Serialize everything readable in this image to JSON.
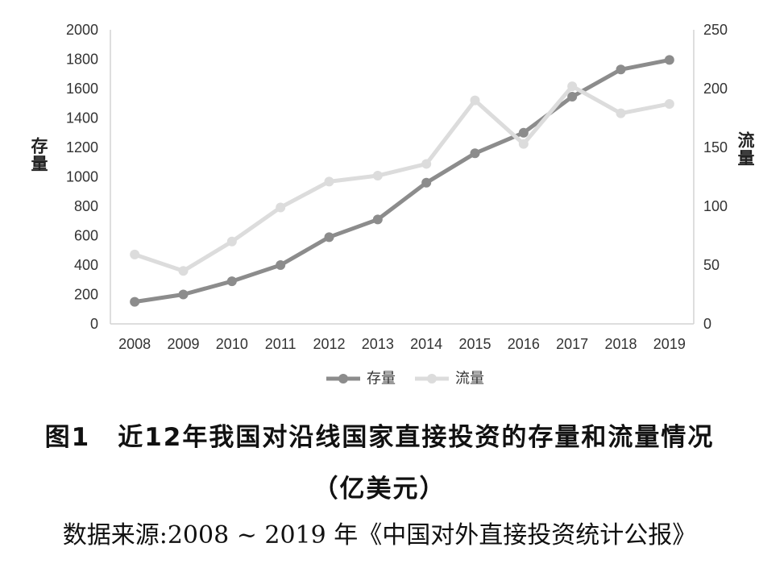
{
  "chart_data": {
    "type": "line",
    "categories": [
      "2008",
      "2009",
      "2010",
      "2011",
      "2012",
      "2013",
      "2014",
      "2015",
      "2016",
      "2017",
      "2018",
      "2019"
    ],
    "series": [
      {
        "name": "存量",
        "axis": "left",
        "color": "#8c8c8c",
        "values": [
          150,
          200,
          290,
          400,
          590,
          710,
          960,
          1160,
          1300,
          1545,
          1730,
          1795
        ]
      },
      {
        "name": "流量",
        "axis": "right",
        "color": "#dcdcdc",
        "values": [
          59,
          45,
          70,
          99,
          121,
          126,
          136,
          190,
          153,
          202,
          179,
          187
        ]
      }
    ],
    "ylabel": "存量",
    "y2label": "流量",
    "ylim": [
      0,
      2000
    ],
    "y2lim": [
      0,
      250
    ],
    "yticks": [
      0,
      200,
      400,
      600,
      800,
      1000,
      1200,
      1400,
      1600,
      1800,
      2000
    ],
    "y2ticks": [
      0,
      50,
      100,
      150,
      200,
      250
    ],
    "grid": false,
    "legend": "bottom"
  },
  "caption": {
    "figure_label": "图1",
    "title": "近12年我国对沿线国家直接投资的存量和流量情况",
    "unit": "（亿美元）",
    "source": "数据来源:2008 ~ 2019 年《中国对外直接投资统计公报》"
  }
}
